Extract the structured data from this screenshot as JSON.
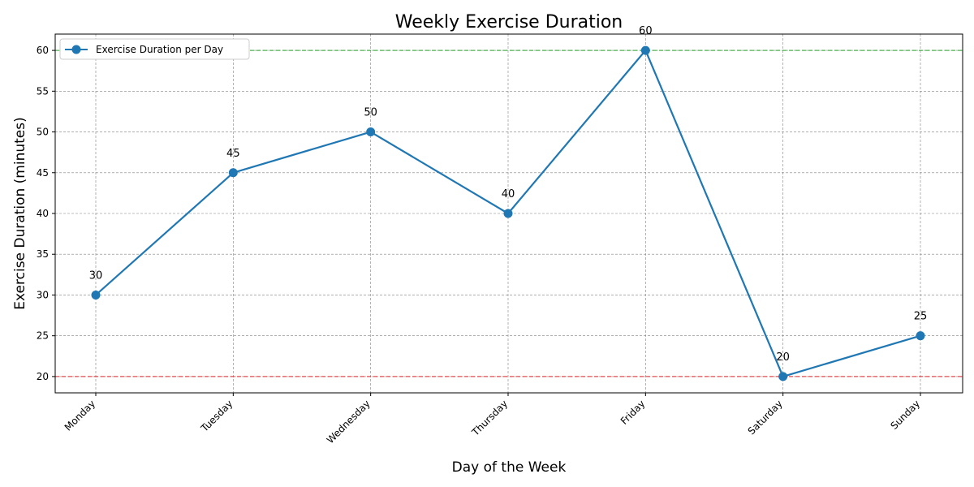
{
  "chart_data": {
    "type": "line",
    "title": "Weekly Exercise Duration",
    "xlabel": "Day of the Week",
    "ylabel": "Exercise Duration (minutes)",
    "categories": [
      "Monday",
      "Tuesday",
      "Wednesday",
      "Thursday",
      "Friday",
      "Saturday",
      "Sunday"
    ],
    "series": [
      {
        "name": "Exercise Duration per Day",
        "values": [
          30,
          45,
          50,
          40,
          60,
          20,
          25
        ],
        "color": "#1f77b4"
      }
    ],
    "ylim": [
      18,
      62
    ],
    "yticks": [
      20,
      25,
      30,
      35,
      40,
      45,
      50,
      55,
      60
    ],
    "reference_lines": [
      {
        "value": 60,
        "color": "#2ca02c",
        "style": "dashed"
      },
      {
        "value": 20,
        "color": "#d62728",
        "style": "dashed"
      }
    ],
    "grid": true,
    "legend_position": "top-left",
    "data_labels": true
  }
}
